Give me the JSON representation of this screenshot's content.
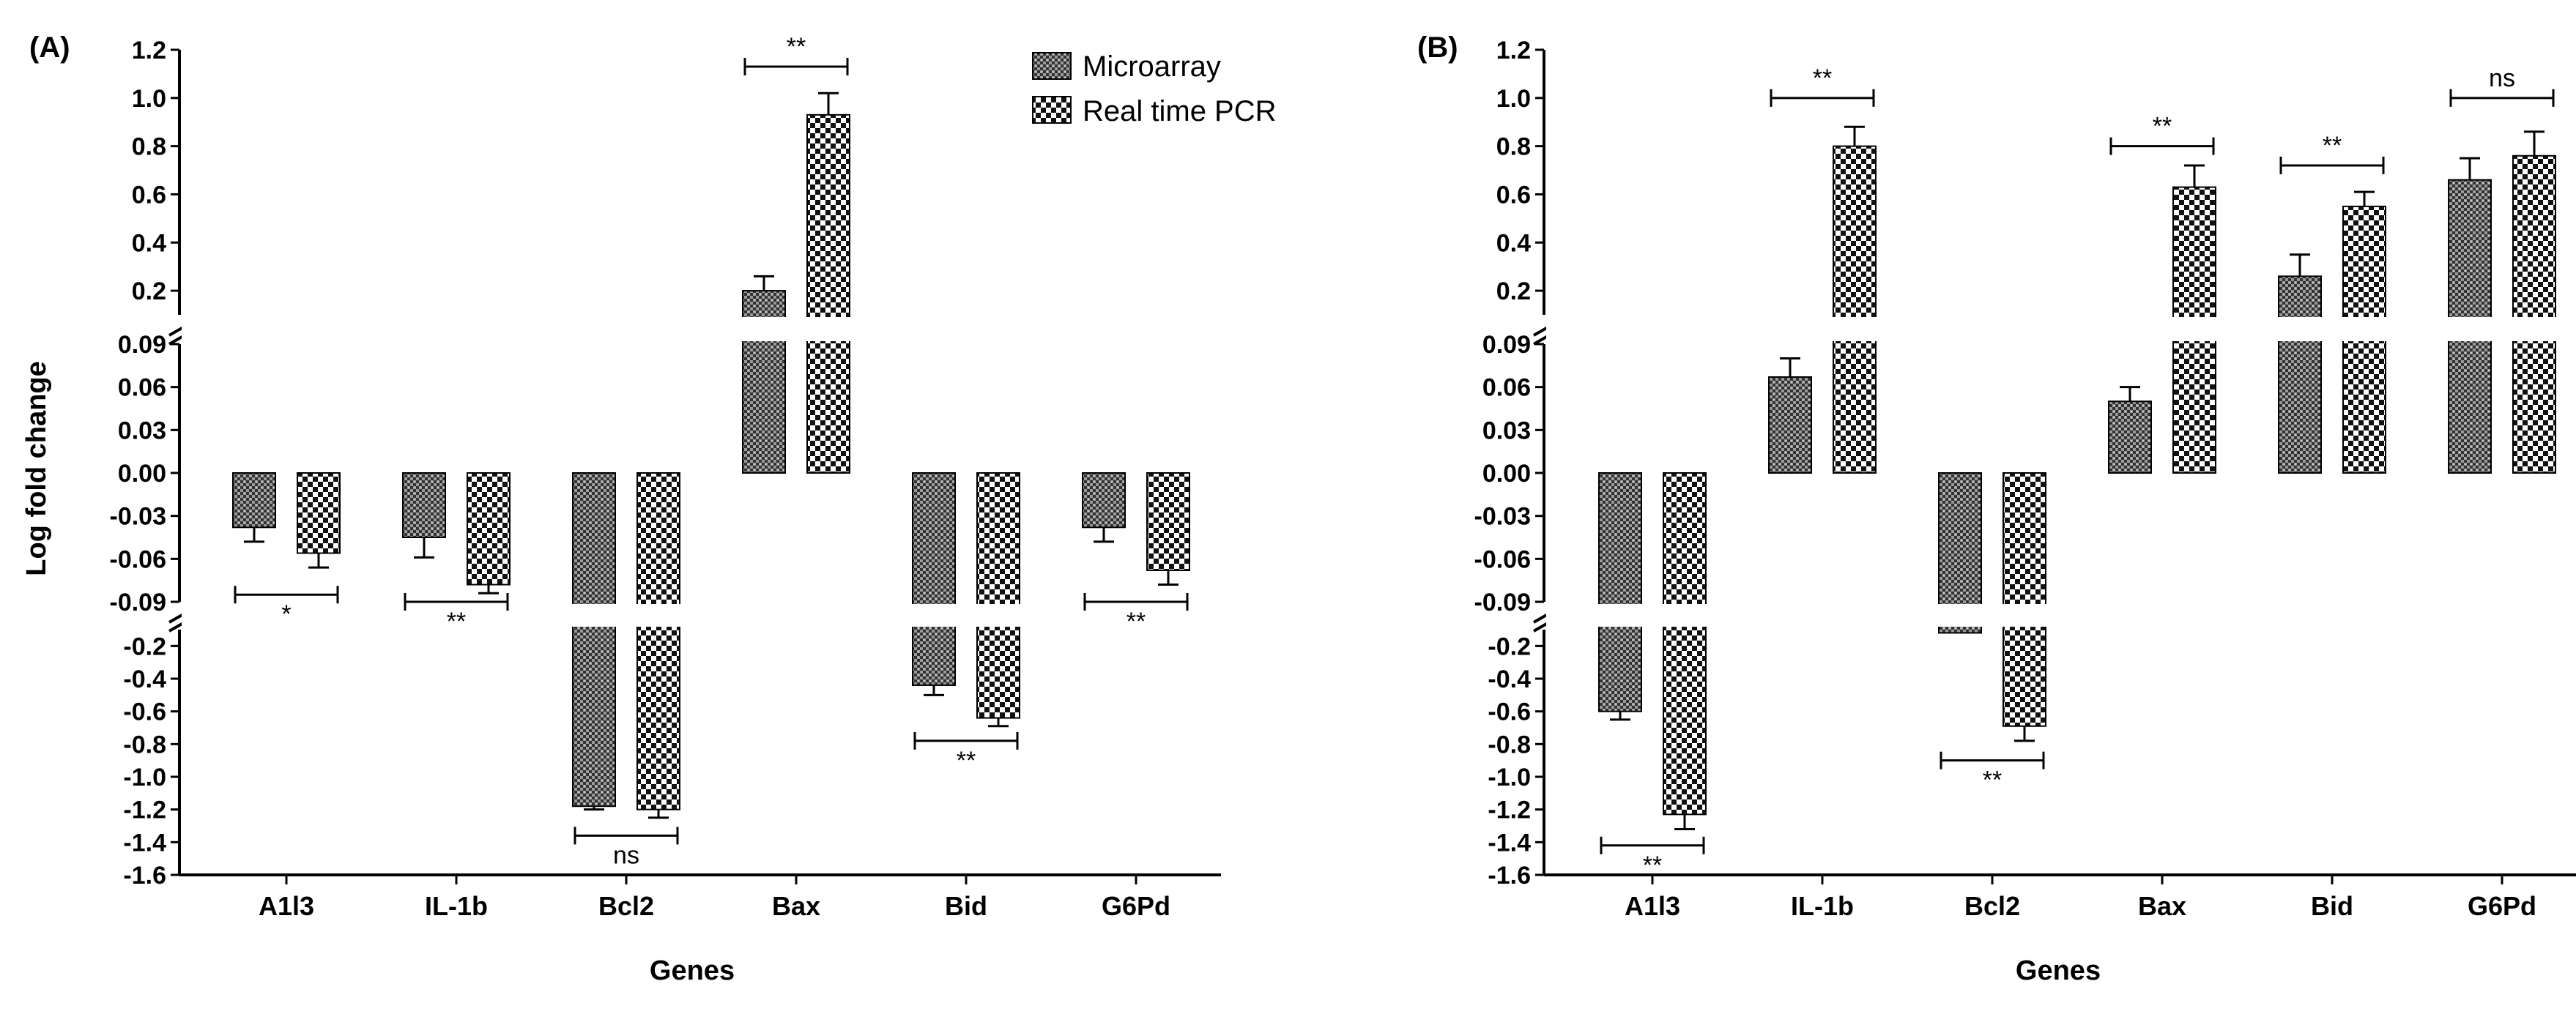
{
  "figure": {
    "legend": [
      "Microarray",
      "Real time PCR"
    ]
  },
  "chart_data": [
    {
      "type": "bar",
      "panel": "(A)",
      "xlabel": "Genes",
      "ylabel": "Log fold change",
      "categories": [
        "A1l3",
        "IL-1b",
        "Bcl2",
        "Bax",
        "Bid",
        "G6Pd"
      ],
      "series": [
        {
          "name": "Microarray",
          "values": [
            -0.038,
            -0.045,
            -1.18,
            0.2,
            -0.44,
            -0.038
          ],
          "errors": [
            0.01,
            0.014,
            0.02,
            0.06,
            0.06,
            0.01
          ]
        },
        {
          "name": "Real time PCR",
          "values": [
            -0.056,
            -0.078,
            -1.2,
            0.93,
            -0.64,
            -0.068
          ],
          "errors": [
            0.01,
            0.006,
            0.05,
            0.09,
            0.05,
            0.01
          ]
        }
      ],
      "y_segments": [
        {
          "range": [
            0.1,
            1.2
          ],
          "ticks": [
            "0.2",
            "0.4",
            "0.6",
            "0.8",
            "1.0",
            "1.2"
          ]
        },
        {
          "range": [
            -0.09,
            0.09
          ],
          "ticks": [
            "-0.09",
            "-0.06",
            "-0.03",
            "0.00",
            "0.03",
            "0.06",
            "0.09"
          ]
        },
        {
          "range": [
            -1.6,
            -0.1
          ],
          "ticks": [
            "-1.6",
            "-1.4",
            "-1.2",
            "-1.0",
            "-0.8",
            "-0.6",
            "-0.4",
            "-0.2"
          ]
        }
      ],
      "significance": [
        {
          "category": "A1l3",
          "label": "*",
          "y": -0.085
        },
        {
          "category": "IL-1b",
          "label": "**",
          "y": -0.099
        },
        {
          "category": "Bcl2",
          "label": "ns",
          "y": -1.36
        },
        {
          "category": "Bax",
          "label": "**",
          "y": 1.13
        },
        {
          "category": "Bid",
          "label": "**",
          "y": -0.78
        },
        {
          "category": "G6Pd",
          "label": "**",
          "y": -0.097
        }
      ]
    },
    {
      "type": "bar",
      "panel": "(B)",
      "xlabel": "Genes",
      "ylabel": "",
      "categories": [
        "A1l3",
        "IL-1b",
        "Bcl2",
        "Bax",
        "Bid",
        "G6Pd"
      ],
      "series": [
        {
          "name": "Microarray",
          "values": [
            -0.6,
            0.067,
            -0.12,
            0.05,
            0.26,
            0.66
          ],
          "errors": [
            0.05,
            0.013,
            0.0,
            0.01,
            0.09,
            0.09
          ]
        },
        {
          "name": "Real time PCR",
          "values": [
            -1.23,
            0.8,
            -0.69,
            0.63,
            0.55,
            0.76
          ],
          "errors": [
            0.09,
            0.08,
            0.09,
            0.09,
            0.06,
            0.1
          ]
        }
      ],
      "y_segments": [
        {
          "range": [
            0.1,
            1.2
          ],
          "ticks": [
            "0.2",
            "0.4",
            "0.6",
            "0.8",
            "1.0",
            "1.2"
          ]
        },
        {
          "range": [
            -0.09,
            0.09
          ],
          "ticks": [
            "-0.09",
            "-0.06",
            "-0.03",
            "0.00",
            "0.03",
            "0.06",
            "0.09"
          ]
        },
        {
          "range": [
            -1.6,
            -0.1
          ],
          "ticks": [
            "-1.6",
            "-1.4",
            "-1.2",
            "-1.0",
            "-0.8",
            "-0.6",
            "-0.4",
            "-0.2"
          ]
        }
      ],
      "significance": [
        {
          "category": "A1l3",
          "label": "**",
          "y": -1.42
        },
        {
          "category": "IL-1b",
          "label": "**",
          "y": 1.0
        },
        {
          "category": "Bcl2",
          "label": "**",
          "y": -0.9
        },
        {
          "category": "Bax",
          "label": "**",
          "y": 0.8
        },
        {
          "category": "Bid",
          "label": "**",
          "y": 0.72
        },
        {
          "category": "G6Pd",
          "label": "ns",
          "y": 1.0
        }
      ]
    }
  ]
}
